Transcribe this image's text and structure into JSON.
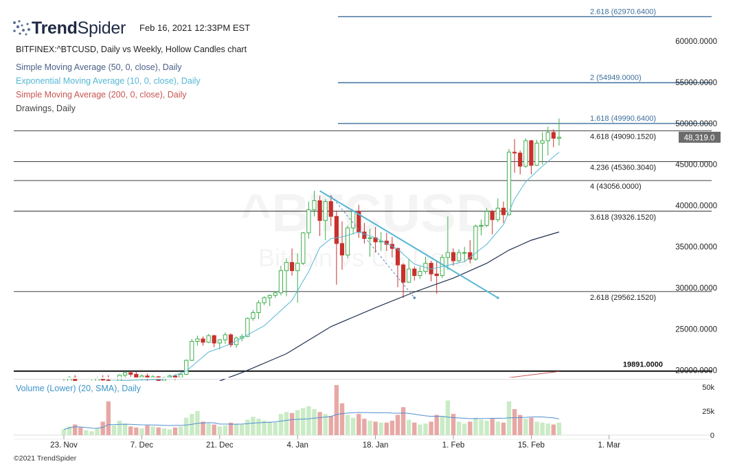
{
  "header": {
    "brand_bold": "Trend",
    "brand_light": "Spider",
    "timestamp": "Feb 16, 2021 12:33PM EST",
    "symbol_line": "BITFINEX:^BTCUSD, Daily vs Weekly, Hollow Candles chart",
    "indicators": [
      {
        "label": "Simple Moving Average (50, 0, close), Daily",
        "color": "#4a5f86"
      },
      {
        "label": "Exponential Moving Average (10, 0, close), Daily",
        "color": "#55b7d4"
      },
      {
        "label": "Simple Moving Average (200, 0, close), Daily",
        "color": "#c9544f"
      },
      {
        "label": "Drawings, Daily",
        "color": "#444444"
      }
    ]
  },
  "footer": "©2021 TrendSpider",
  "chart_data": {
    "type": "candlestick",
    "watermark": {
      "symbol": "^BTCUSD",
      "name": "Bitcoin vs US Dollar"
    },
    "y_ticks": [
      "60000.0000",
      "55000.0000",
      "50000.0000",
      "45000.0000",
      "40000.0000",
      "35000.0000",
      "30000.0000",
      "25000.0000",
      "20000.0000"
    ],
    "y_tick_values": [
      60000,
      55000,
      50000,
      45000,
      40000,
      35000,
      30000,
      25000,
      20000
    ],
    "ylim": [
      19200,
      63500
    ],
    "x_ticks": [
      {
        "label": "23. Nov",
        "index": 0
      },
      {
        "label": "7. Dec",
        "index": 14
      },
      {
        "label": "21. Dec",
        "index": 28
      },
      {
        "label": "4. Jan",
        "index": 42
      },
      {
        "label": "18. Jan",
        "index": 56
      },
      {
        "label": "1. Feb",
        "index": 70
      },
      {
        "label": "15. Feb",
        "index": 84
      },
      {
        "label": "1. Mar",
        "index": 98
      }
    ],
    "last_price": {
      "label": "48,319.0",
      "value": 48319
    },
    "fib_levels": [
      {
        "label": "2.618 (62970.6400)",
        "value": 62970.64,
        "color": "#3d6e9c"
      },
      {
        "label": "2 (54949.0000)",
        "value": 54949,
        "color": "#3d6e9c"
      },
      {
        "label": "1.618 (49990.6400)",
        "value": 49990.64,
        "color": "#3d6e9c"
      },
      {
        "label": "4.618 (49090.1520)",
        "value": 49090.152,
        "color": "#222222"
      },
      {
        "label": "4.236 (45360.3040)",
        "value": 45360.304,
        "color": "#222222"
      },
      {
        "label": "4 (43056.0000)",
        "value": 43056,
        "color": "#222222"
      },
      {
        "label": "3.618 (39326.1520)",
        "value": 39326.152,
        "color": "#222222"
      },
      {
        "label": "2.618 (29562.1520)",
        "value": 29562.152,
        "color": "#222222"
      }
    ],
    "support": {
      "label": "19891.0000",
      "value": 19891
    },
    "volume": {
      "label": "Volume (Lower) (20, SMA), Daily",
      "y_ticks": [
        "50k",
        "25k",
        "0"
      ],
      "y_tick_values": [
        50000,
        25000,
        0
      ],
      "max": 52000
    },
    "candles": [
      [
        18400,
        18900,
        18000,
        18500,
        6000
      ],
      [
        18500,
        19300,
        18300,
        19100,
        9000
      ],
      [
        19100,
        19400,
        17900,
        18200,
        11000
      ],
      [
        18200,
        18600,
        17600,
        17900,
        8000
      ],
      [
        17900,
        18500,
        17700,
        18300,
        5000
      ],
      [
        18300,
        18800,
        18000,
        18600,
        4000
      ],
      [
        18600,
        19200,
        18400,
        19000,
        7000
      ],
      [
        19000,
        19400,
        18600,
        18800,
        14000
      ],
      [
        18800,
        19400,
        17300,
        17600,
        35000
      ],
      [
        17600,
        18400,
        17400,
        18200,
        10000
      ],
      [
        18200,
        19500,
        18100,
        19400,
        15000
      ],
      [
        19400,
        19900,
        19000,
        19700,
        12000
      ],
      [
        19700,
        19900,
        19200,
        19500,
        9000
      ],
      [
        19500,
        19800,
        18900,
        19100,
        8000
      ],
      [
        19100,
        19500,
        18800,
        19300,
        7000
      ],
      [
        19300,
        19600,
        18700,
        19000,
        10000
      ],
      [
        19000,
        19400,
        18800,
        19200,
        9000
      ],
      [
        19200,
        19300,
        18400,
        18700,
        8000
      ],
      [
        18700,
        19200,
        18500,
        19100,
        7000
      ],
      [
        19100,
        19500,
        18900,
        19300,
        6000
      ],
      [
        19300,
        19500,
        18800,
        19100,
        8000
      ],
      [
        19100,
        19700,
        19000,
        19500,
        9000
      ],
      [
        19500,
        21300,
        19400,
        21200,
        18000
      ],
      [
        21200,
        23800,
        21100,
        23500,
        22000
      ],
      [
        23500,
        24200,
        23000,
        23800,
        25000
      ],
      [
        23800,
        24100,
        23000,
        23400,
        14000
      ],
      [
        23400,
        24400,
        23300,
        24200,
        12000
      ],
      [
        24200,
        24300,
        22800,
        23300,
        11000
      ],
      [
        23300,
        23800,
        22500,
        23700,
        9000
      ],
      [
        23700,
        24600,
        23200,
        24300,
        10000
      ],
      [
        24300,
        24500,
        22800,
        23100,
        13000
      ],
      [
        23100,
        24100,
        22700,
        23900,
        12000
      ],
      [
        23900,
        24400,
        23500,
        24100,
        11000
      ],
      [
        24100,
        26400,
        24000,
        26300,
        16000
      ],
      [
        26300,
        27300,
        26000,
        27000,
        19000
      ],
      [
        27000,
        28500,
        26200,
        28200,
        17000
      ],
      [
        28200,
        29000,
        27900,
        28800,
        15000
      ],
      [
        28800,
        29200,
        27800,
        29100,
        14000
      ],
      [
        29100,
        29600,
        28800,
        29400,
        13000
      ],
      [
        29400,
        32700,
        29100,
        32100,
        22000
      ],
      [
        32100,
        33600,
        29000,
        33100,
        24000
      ],
      [
        33100,
        34800,
        31500,
        32100,
        23000
      ],
      [
        32100,
        34200,
        28200,
        33000,
        26000
      ],
      [
        33000,
        36800,
        32800,
        36700,
        28000
      ],
      [
        36700,
        40500,
        36000,
        39500,
        30000
      ],
      [
        39500,
        41800,
        38700,
        40600,
        27000
      ],
      [
        40600,
        41200,
        36300,
        38200,
        24000
      ],
      [
        38200,
        40800,
        35800,
        40500,
        22000
      ],
      [
        40500,
        41300,
        37500,
        38700,
        20000
      ],
      [
        38700,
        39400,
        30400,
        35400,
        52000
      ],
      [
        35400,
        38100,
        32200,
        34000,
        33000
      ],
      [
        34000,
        37600,
        33600,
        37300,
        21000
      ],
      [
        37300,
        39500,
        36500,
        39300,
        18000
      ],
      [
        39300,
        40100,
        36100,
        36800,
        22000
      ],
      [
        36800,
        37900,
        35400,
        36000,
        17000
      ],
      [
        36000,
        37200,
        33800,
        36100,
        15000
      ],
      [
        36100,
        37400,
        34300,
        35600,
        14000
      ],
      [
        35600,
        36800,
        34500,
        35700,
        13000
      ],
      [
        35700,
        36700,
        34500,
        35300,
        13000
      ],
      [
        35300,
        36200,
        33700,
        34800,
        15000
      ],
      [
        34800,
        34900,
        30100,
        32800,
        21000
      ],
      [
        32800,
        33000,
        28800,
        30700,
        29000
      ],
      [
        30700,
        33500,
        30600,
        32300,
        16000
      ],
      [
        32300,
        32600,
        30900,
        31500,
        13000
      ],
      [
        31500,
        32600,
        31100,
        32000,
        11000
      ],
      [
        32000,
        33800,
        31700,
        33000,
        12000
      ],
      [
        33000,
        33300,
        30800,
        31700,
        14000
      ],
      [
        31700,
        33200,
        29300,
        31500,
        21000
      ],
      [
        31500,
        34100,
        31200,
        33700,
        20000
      ],
      [
        33700,
        38700,
        32200,
        34300,
        36000
      ],
      [
        34300,
        34800,
        32700,
        33300,
        22000
      ],
      [
        33300,
        34700,
        33100,
        34300,
        14000
      ],
      [
        34300,
        35000,
        33200,
        34300,
        12000
      ],
      [
        34300,
        35800,
        33000,
        33500,
        14000
      ],
      [
        33500,
        37700,
        33300,
        37500,
        18000
      ],
      [
        37500,
        38300,
        36400,
        37600,
        16000
      ],
      [
        37600,
        39700,
        37400,
        39300,
        15000
      ],
      [
        39300,
        39500,
        36500,
        38300,
        17000
      ],
      [
        38300,
        40900,
        38000,
        39700,
        14000
      ],
      [
        39700,
        40500,
        37900,
        38900,
        13000
      ],
      [
        38900,
        46900,
        38800,
        46500,
        35000
      ],
      [
        46500,
        48100,
        44000,
        46400,
        27000
      ],
      [
        46400,
        46700,
        43800,
        44800,
        21000
      ],
      [
        44800,
        48200,
        44600,
        47900,
        17000
      ],
      [
        47900,
        48000,
        43800,
        44900,
        18000
      ],
      [
        44900,
        48000,
        44800,
        47600,
        14000
      ],
      [
        47600,
        48900,
        45000,
        47900,
        13000
      ],
      [
        47900,
        49600,
        46100,
        48900,
        12000
      ],
      [
        48900,
        49300,
        47100,
        48200,
        11000
      ],
      [
        48200,
        50600,
        47300,
        48319,
        13000
      ]
    ],
    "series": [
      {
        "name": "Exponential Moving Average (10, 0, close), Daily",
        "color": "#55b7d4",
        "width": 1,
        "points": [
          [
            0,
            18500
          ],
          [
            18,
            18900
          ],
          [
            22,
            19900
          ],
          [
            26,
            22200
          ],
          [
            30,
            23200
          ],
          [
            36,
            25400
          ],
          [
            41,
            28500
          ],
          [
            44,
            32000
          ],
          [
            46,
            34900
          ],
          [
            48,
            36000
          ],
          [
            50,
            36200
          ],
          [
            53,
            36800
          ],
          [
            56,
            36100
          ],
          [
            60,
            34700
          ],
          [
            63,
            32900
          ],
          [
            66,
            32300
          ],
          [
            68,
            32600
          ],
          [
            72,
            33200
          ],
          [
            76,
            35300
          ],
          [
            79,
            37700
          ],
          [
            81,
            40800
          ],
          [
            83,
            42900
          ],
          [
            86,
            44800
          ],
          [
            89,
            46500
          ]
        ]
      },
      {
        "name": "Simple Moving Average (50, 0, close), Daily",
        "color": "#1f2f4f",
        "width": 1.2,
        "points": [
          [
            28,
            18700
          ],
          [
            32,
            19700
          ],
          [
            40,
            22000
          ],
          [
            48,
            25300
          ],
          [
            56,
            27600
          ],
          [
            63,
            29500
          ],
          [
            70,
            31200
          ],
          [
            76,
            33000
          ],
          [
            80,
            34600
          ],
          [
            84,
            35800
          ],
          [
            89,
            36800
          ]
        ]
      },
      {
        "name": "Simple Moving Average (200, 0, close), Daily",
        "color": "#c9544f",
        "width": 1,
        "points": [
          [
            80,
            19100
          ],
          [
            89,
            19850
          ]
        ]
      }
    ],
    "drawings": [
      {
        "kind": "trendline",
        "color": "#55b7d4",
        "width": 2,
        "dash": "",
        "from": [
          46,
          41800
        ],
        "to": [
          78,
          28800
        ],
        "dot_at": 78
      },
      {
        "kind": "trendline",
        "color": "#5a86b8",
        "width": 1,
        "dash": "3,3",
        "from": [
          48,
          41200
        ],
        "to": [
          63,
          28800
        ],
        "dot_at": 63
      }
    ]
  }
}
